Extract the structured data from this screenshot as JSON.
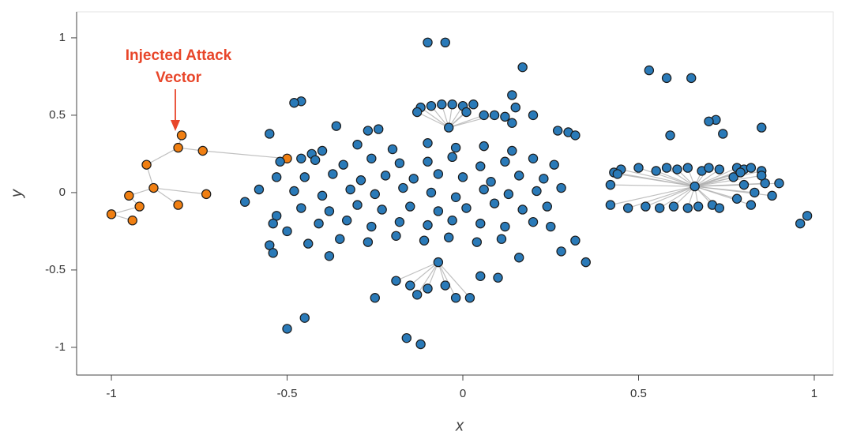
{
  "chart_data": {
    "type": "scatter",
    "xlabel": "x",
    "ylabel": "y",
    "xlim": [
      -1.099,
      1.054
    ],
    "ylim": [
      -1.179,
      1.168
    ],
    "xticks": [
      -1,
      -0.5,
      0,
      0.5,
      1
    ],
    "yticks": [
      -1,
      -0.5,
      0,
      0.5,
      1
    ],
    "edge_color": "#b0b0b0",
    "annotation": {
      "lines": [
        "Injected Attack",
        "Vector"
      ],
      "color": "#e8462a"
    },
    "series": [
      {
        "color": "#f07f12",
        "x": [
          -0.8,
          -0.81,
          -0.74,
          -0.9,
          -0.88,
          -0.95,
          -0.73,
          -0.92,
          -0.81,
          -1.0,
          -0.94,
          -0.5
        ],
        "values": [
          0.37,
          0.29,
          0.27,
          0.18,
          0.03,
          -0.02,
          -0.01,
          -0.09,
          -0.08,
          -0.14,
          -0.18,
          0.22
        ],
        "edges": [
          [
            0,
            1
          ],
          [
            1,
            2
          ],
          [
            1,
            3
          ],
          [
            3,
            4
          ],
          [
            4,
            5
          ],
          [
            4,
            6
          ],
          [
            5,
            7
          ],
          [
            7,
            9
          ],
          [
            9,
            10
          ],
          [
            4,
            8
          ],
          [
            2,
            11
          ]
        ]
      },
      {
        "color": "#2a7ab8",
        "x": [
          -0.04,
          -0.12,
          -0.09,
          -0.06,
          -0.03,
          0,
          0.03,
          -0.13,
          0.01,
          0.06,
          0.09,
          -0.07,
          -0.19,
          -0.15,
          -0.1,
          -0.05,
          -0.02,
          0.02,
          -0.13,
          -0.1,
          -0.05,
          0.17,
          0.12,
          0.14,
          0.15,
          0.14,
          0.2,
          -0.46,
          -0.48,
          -0.36,
          -0.27,
          -0.24,
          -0.55,
          0.3,
          0.27,
          0.32,
          -0.4,
          -0.43,
          -0.46,
          -0.52,
          -0.3,
          -0.2,
          -0.1,
          -0.02,
          0.06,
          0.14,
          -0.42,
          -0.34,
          -0.26,
          -0.18,
          -0.1,
          -0.03,
          0.05,
          0.12,
          0.2,
          0.26,
          -0.45,
          -0.37,
          -0.29,
          -0.22,
          -0.14,
          -0.07,
          0,
          0.08,
          0.16,
          0.23,
          -0.48,
          -0.4,
          -0.32,
          -0.25,
          -0.17,
          -0.09,
          -0.02,
          0.06,
          0.13,
          0.21,
          0.28,
          -0.46,
          -0.38,
          -0.3,
          -0.23,
          -0.15,
          -0.07,
          0.01,
          0.09,
          0.17,
          0.24,
          -0.41,
          -0.33,
          -0.26,
          -0.18,
          -0.1,
          -0.03,
          0.05,
          0.12,
          0.2,
          -0.35,
          -0.27,
          -0.19,
          -0.11,
          -0.04,
          0.04,
          0.11,
          -0.62,
          -0.58,
          -0.53,
          -0.54,
          -0.55,
          -0.54,
          -0.5,
          -0.44,
          -0.38,
          -0.53,
          -0.25,
          0.05,
          0.1,
          -0.5,
          -0.45,
          -0.16,
          -0.12,
          0.35,
          0.32,
          0.28,
          0.25,
          0.16,
          0.53,
          0.58,
          0.65,
          0.85,
          0.74,
          0.72,
          0.7,
          0.59,
          0.98,
          0.96
        ],
        "values": [
          0.42,
          0.55,
          0.56,
          0.57,
          0.57,
          0.56,
          0.57,
          0.52,
          0.52,
          0.5,
          0.5,
          -0.45,
          -0.57,
          -0.6,
          -0.62,
          -0.6,
          -0.68,
          -0.68,
          -0.66,
          0.97,
          0.97,
          0.81,
          0.49,
          0.45,
          0.55,
          0.63,
          0.5,
          0.59,
          0.58,
          0.43,
          0.4,
          0.41,
          0.38,
          0.39,
          0.4,
          0.37,
          0.27,
          0.25,
          0.22,
          0.2,
          0.31,
          0.28,
          0.32,
          0.29,
          0.3,
          0.27,
          0.21,
          0.18,
          0.22,
          0.19,
          0.2,
          0.23,
          0.17,
          0.2,
          0.22,
          0.18,
          0.1,
          0.12,
          0.08,
          0.11,
          0.09,
          0.12,
          0.1,
          0.07,
          0.11,
          0.09,
          0.01,
          -0.02,
          0.02,
          -0.01,
          0.03,
          0,
          -0.03,
          0.02,
          -0.01,
          0.01,
          0.03,
          -0.1,
          -0.12,
          -0.08,
          -0.11,
          -0.09,
          -0.12,
          -0.1,
          -0.07,
          -0.11,
          -0.09,
          -0.2,
          -0.18,
          -0.22,
          -0.19,
          -0.21,
          -0.18,
          -0.2,
          -0.22,
          -0.19,
          -0.3,
          -0.32,
          -0.28,
          -0.31,
          -0.29,
          -0.32,
          -0.3,
          -0.06,
          0.02,
          -0.15,
          -0.2,
          -0.34,
          -0.39,
          -0.25,
          -0.33,
          -0.41,
          0.1,
          -0.68,
          -0.54,
          -0.55,
          -0.88,
          -0.81,
          -0.94,
          -0.98,
          -0.45,
          -0.31,
          -0.38,
          -0.22,
          -0.42,
          0.79,
          0.74,
          0.74,
          0.42,
          0.38,
          0.47,
          0.46,
          0.37,
          -0.15,
          -0.2
        ],
        "edges": [
          [
            0,
            1
          ],
          [
            0,
            2
          ],
          [
            0,
            3
          ],
          [
            0,
            4
          ],
          [
            0,
            5
          ],
          [
            0,
            6
          ],
          [
            0,
            7
          ],
          [
            0,
            8
          ],
          [
            0,
            9
          ],
          [
            0,
            10
          ],
          [
            11,
            12
          ],
          [
            11,
            13
          ],
          [
            11,
            14
          ],
          [
            11,
            15
          ],
          [
            11,
            16
          ],
          [
            11,
            17
          ],
          [
            11,
            18
          ]
        ]
      },
      {
        "color": "#2a7ab8",
        "x": [
          0.66,
          0.43,
          0.45,
          0.5,
          0.55,
          0.58,
          0.61,
          0.64,
          0.68,
          0.7,
          0.73,
          0.78,
          0.8,
          0.82,
          0.85,
          0.42,
          0.47,
          0.52,
          0.56,
          0.6,
          0.64,
          0.67,
          0.71,
          0.73,
          0.77,
          0.8,
          0.83,
          0.86,
          0.78,
          0.82,
          0.85,
          0.88,
          0.79,
          0.9,
          0.42,
          0.44
        ],
        "values": [
          0.04,
          0.13,
          0.15,
          0.16,
          0.14,
          0.16,
          0.15,
          0.16,
          0.14,
          0.16,
          0.15,
          0.16,
          0.15,
          0.16,
          0.14,
          -0.08,
          -0.1,
          -0.09,
          -0.1,
          -0.09,
          -0.1,
          -0.09,
          -0.08,
          -0.1,
          0.1,
          0.05,
          0,
          0.06,
          -0.04,
          -0.08,
          0.11,
          -0.02,
          0.13,
          0.06,
          0.05,
          0.12
        ],
        "edges": [
          [
            0,
            1
          ],
          [
            0,
            2
          ],
          [
            0,
            3
          ],
          [
            0,
            4
          ],
          [
            0,
            5
          ],
          [
            0,
            6
          ],
          [
            0,
            7
          ],
          [
            0,
            8
          ],
          [
            0,
            9
          ],
          [
            0,
            10
          ],
          [
            0,
            11
          ],
          [
            0,
            12
          ],
          [
            0,
            13
          ],
          [
            0,
            14
          ],
          [
            0,
            15
          ],
          [
            0,
            16
          ],
          [
            0,
            17
          ],
          [
            0,
            18
          ],
          [
            0,
            19
          ],
          [
            0,
            20
          ],
          [
            0,
            21
          ],
          [
            0,
            22
          ],
          [
            0,
            23
          ],
          [
            0,
            24
          ],
          [
            0,
            25
          ],
          [
            0,
            26
          ],
          [
            0,
            27
          ],
          [
            0,
            28
          ],
          [
            0,
            29
          ],
          [
            0,
            30
          ],
          [
            0,
            31
          ],
          [
            0,
            32
          ],
          [
            0,
            33
          ],
          [
            0,
            34
          ],
          [
            0,
            35
          ]
        ]
      }
    ]
  }
}
